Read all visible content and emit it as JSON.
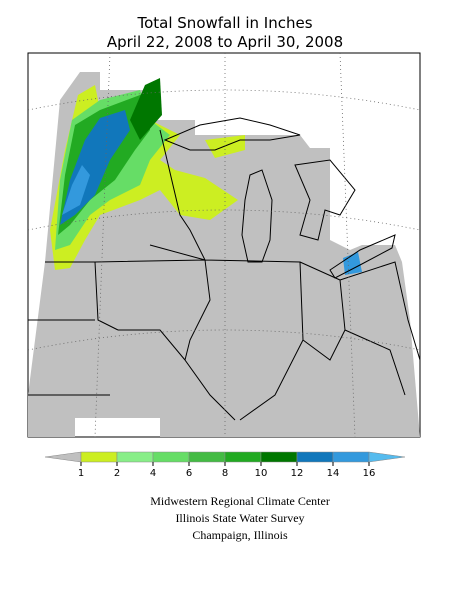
{
  "header": {
    "title": [
      "Total Snowfall in Inches",
      "April 22, 2008 to April 30, 2008"
    ]
  },
  "legend": {
    "colors": [
      "#c0c0c0",
      "#ccee22",
      "#88ee88",
      "#66dd66",
      "#44bb44",
      "#22aa22",
      "#007700",
      "#1177bb",
      "#3399dd",
      "#55bbee"
    ],
    "ticks": [
      1,
      2,
      4,
      6,
      8,
      10,
      12,
      14,
      16
    ]
  },
  "footer": [
    "Midwestern Regional Climate Center",
    "Illinois State Water Survey",
    "Champaign, Illinois"
  ]
}
